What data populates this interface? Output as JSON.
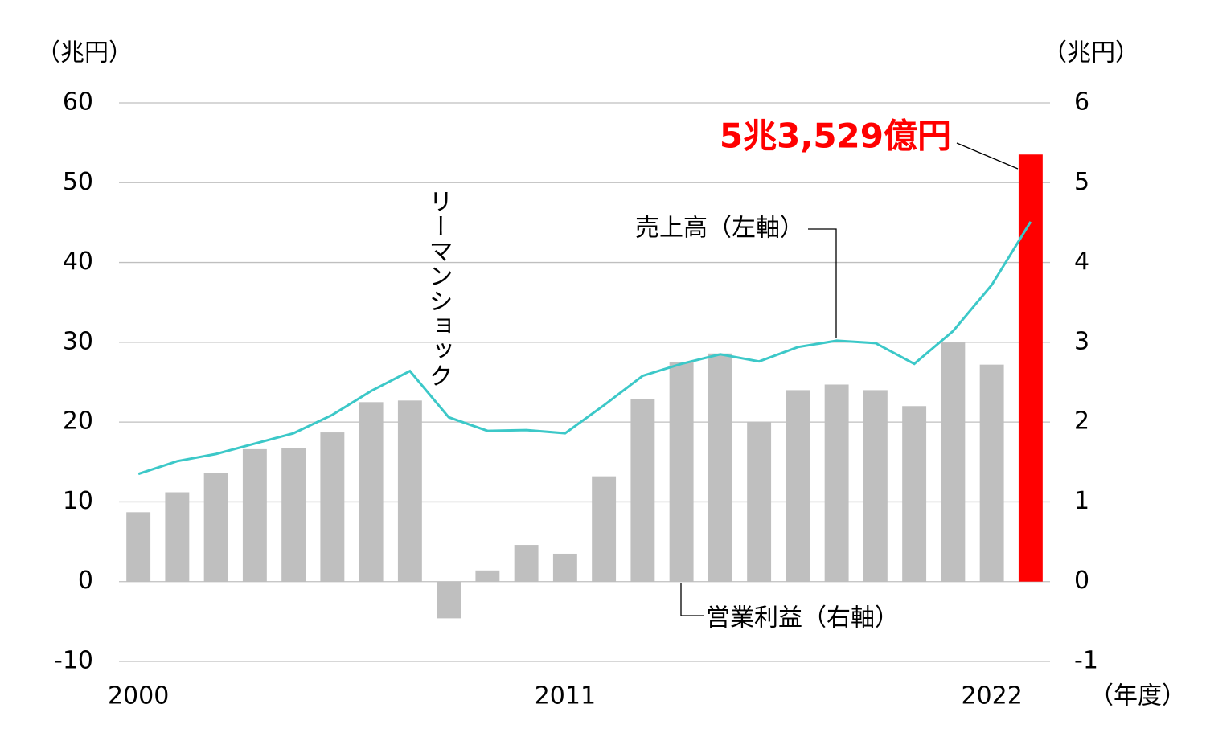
{
  "chart_data": {
    "type": "bar-line",
    "y_label": "（兆円）",
    "y2_label": "（兆円）",
    "x_label": "（年度）",
    "categories": [
      "2000",
      null,
      null,
      null,
      null,
      null,
      null,
      null,
      null,
      null,
      null,
      "2011",
      null,
      null,
      null,
      null,
      null,
      null,
      null,
      null,
      null,
      null,
      "2022",
      null
    ],
    "ylim": [
      -10,
      60
    ],
    "yticks": [
      -10,
      0,
      10,
      20,
      30,
      40,
      50,
      60
    ],
    "y2lim": [
      -1,
      6
    ],
    "y2ticks": [
      -1,
      0,
      1,
      2,
      3,
      4,
      5,
      6
    ],
    "grid": true,
    "series": [
      {
        "name": "営業利益（右軸）",
        "type": "bar",
        "axis": "y2",
        "color": "#bfbfbf",
        "colors": [
          "#bfbfbf",
          "#bfbfbf",
          "#bfbfbf",
          "#bfbfbf",
          "#bfbfbf",
          "#bfbfbf",
          "#bfbfbf",
          "#bfbfbf",
          "#bfbfbf",
          "#bfbfbf",
          "#bfbfbf",
          "#bfbfbf",
          "#bfbfbf",
          "#bfbfbf",
          "#bfbfbf",
          "#bfbfbf",
          "#bfbfbf",
          "#bfbfbf",
          "#bfbfbf",
          "#bfbfbf",
          "#bfbfbf",
          "#bfbfbf",
          "#bfbfbf",
          "#ff0000"
        ],
        "values": [
          0.87,
          1.12,
          1.36,
          1.66,
          1.67,
          1.87,
          2.25,
          2.27,
          -0.46,
          0.14,
          0.46,
          0.35,
          1.32,
          2.29,
          2.75,
          2.86,
          2.0,
          2.4,
          2.47,
          2.4,
          2.2,
          3.0,
          2.72,
          5.3529
        ]
      },
      {
        "name": "売上高（左軸）",
        "type": "line",
        "axis": "y",
        "color": "#3cc8c8",
        "values": [
          13.5,
          15.1,
          16.0,
          17.3,
          18.6,
          20.9,
          23.9,
          26.4,
          20.6,
          18.9,
          19.0,
          18.6,
          22.1,
          25.8,
          27.3,
          28.5,
          27.6,
          29.4,
          30.2,
          29.9,
          27.3,
          31.4,
          37.2,
          45.1
        ]
      }
    ],
    "annotations": [
      "リーマンショック",
      "5兆3,529億円"
    ]
  }
}
